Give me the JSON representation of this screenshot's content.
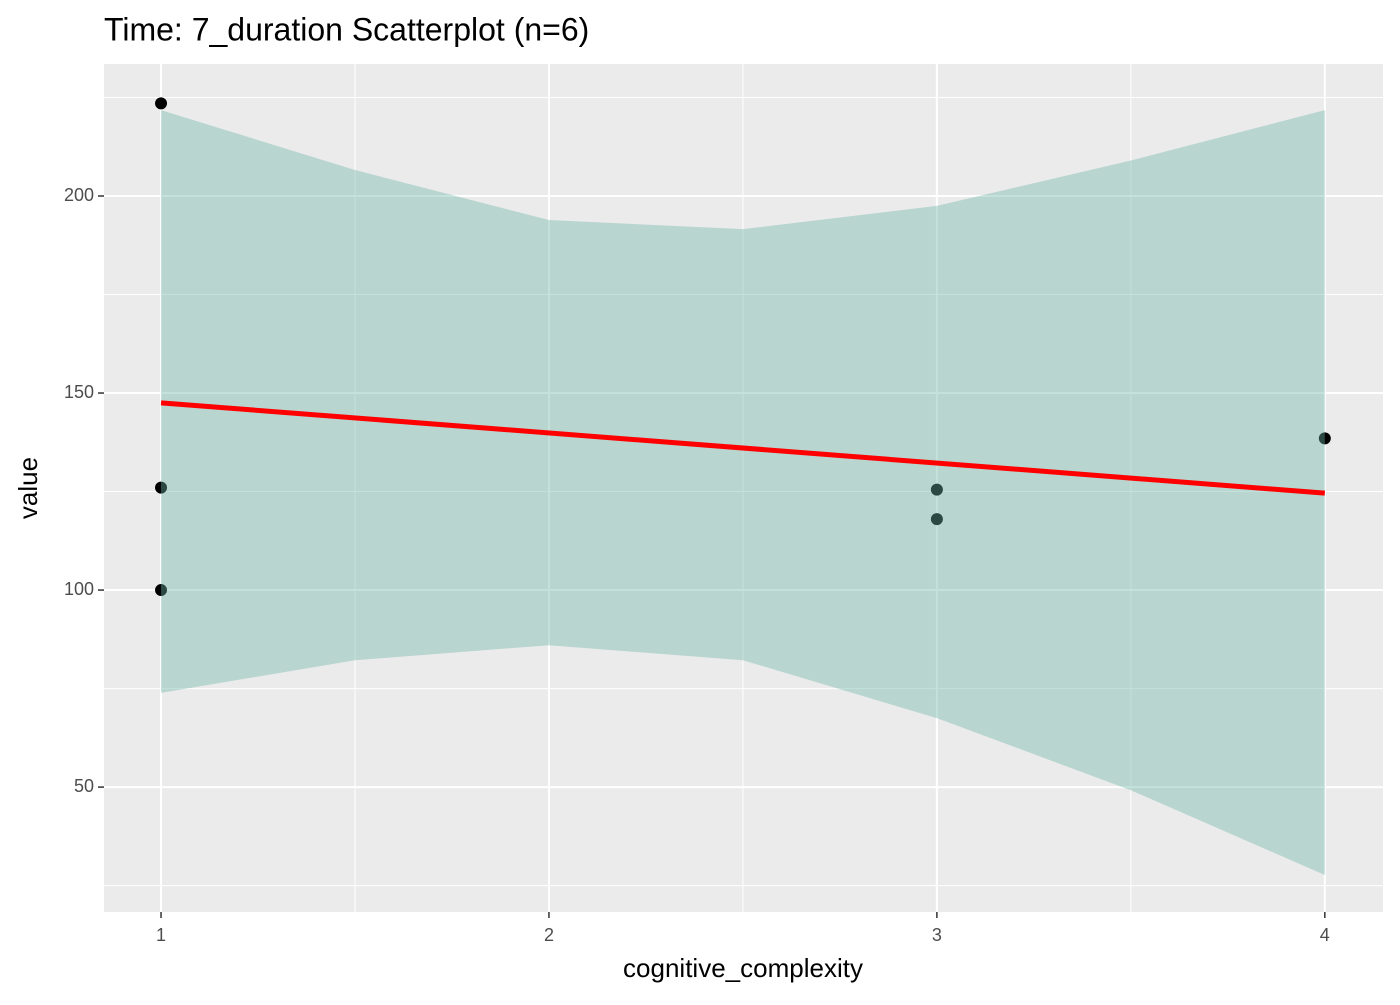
{
  "chart_data": {
    "type": "scatter",
    "title": "Time: 7_duration Scatterplot (n=6)",
    "x_label": "cognitive_complexity",
    "y_label": "value",
    "x": [
      1,
      1,
      1,
      3,
      3,
      4
    ],
    "values": [
      223.5,
      126,
      100,
      125.5,
      118,
      138.5
    ],
    "color": "#000000",
    "fit": {
      "color": "#ff0000",
      "x": [
        1,
        4
      ],
      "values": [
        147.5,
        124.6
      ]
    },
    "band": {
      "color": "#6cb5a5",
      "x": [
        1,
        1.5,
        2,
        2.5,
        3,
        3.5,
        4
      ],
      "upper": [
        221.8,
        206.6,
        193.9,
        191.6,
        197.5,
        209,
        221.8
      ],
      "lower": [
        73.9,
        82.2,
        86,
        82.2,
        67.5,
        49.2,
        27.7
      ]
    },
    "xlim": [
      0.853,
      4.15
    ],
    "ylim": [
      18.3,
      233.5
    ],
    "xticks": [
      1,
      2,
      3,
      4
    ],
    "yticks": [
      50,
      100,
      150,
      200
    ],
    "minor_xticks": [
      1.5,
      2.5,
      3.5
    ],
    "minor_yticks": [
      25,
      75,
      125,
      175,
      225
    ],
    "grid": true
  }
}
